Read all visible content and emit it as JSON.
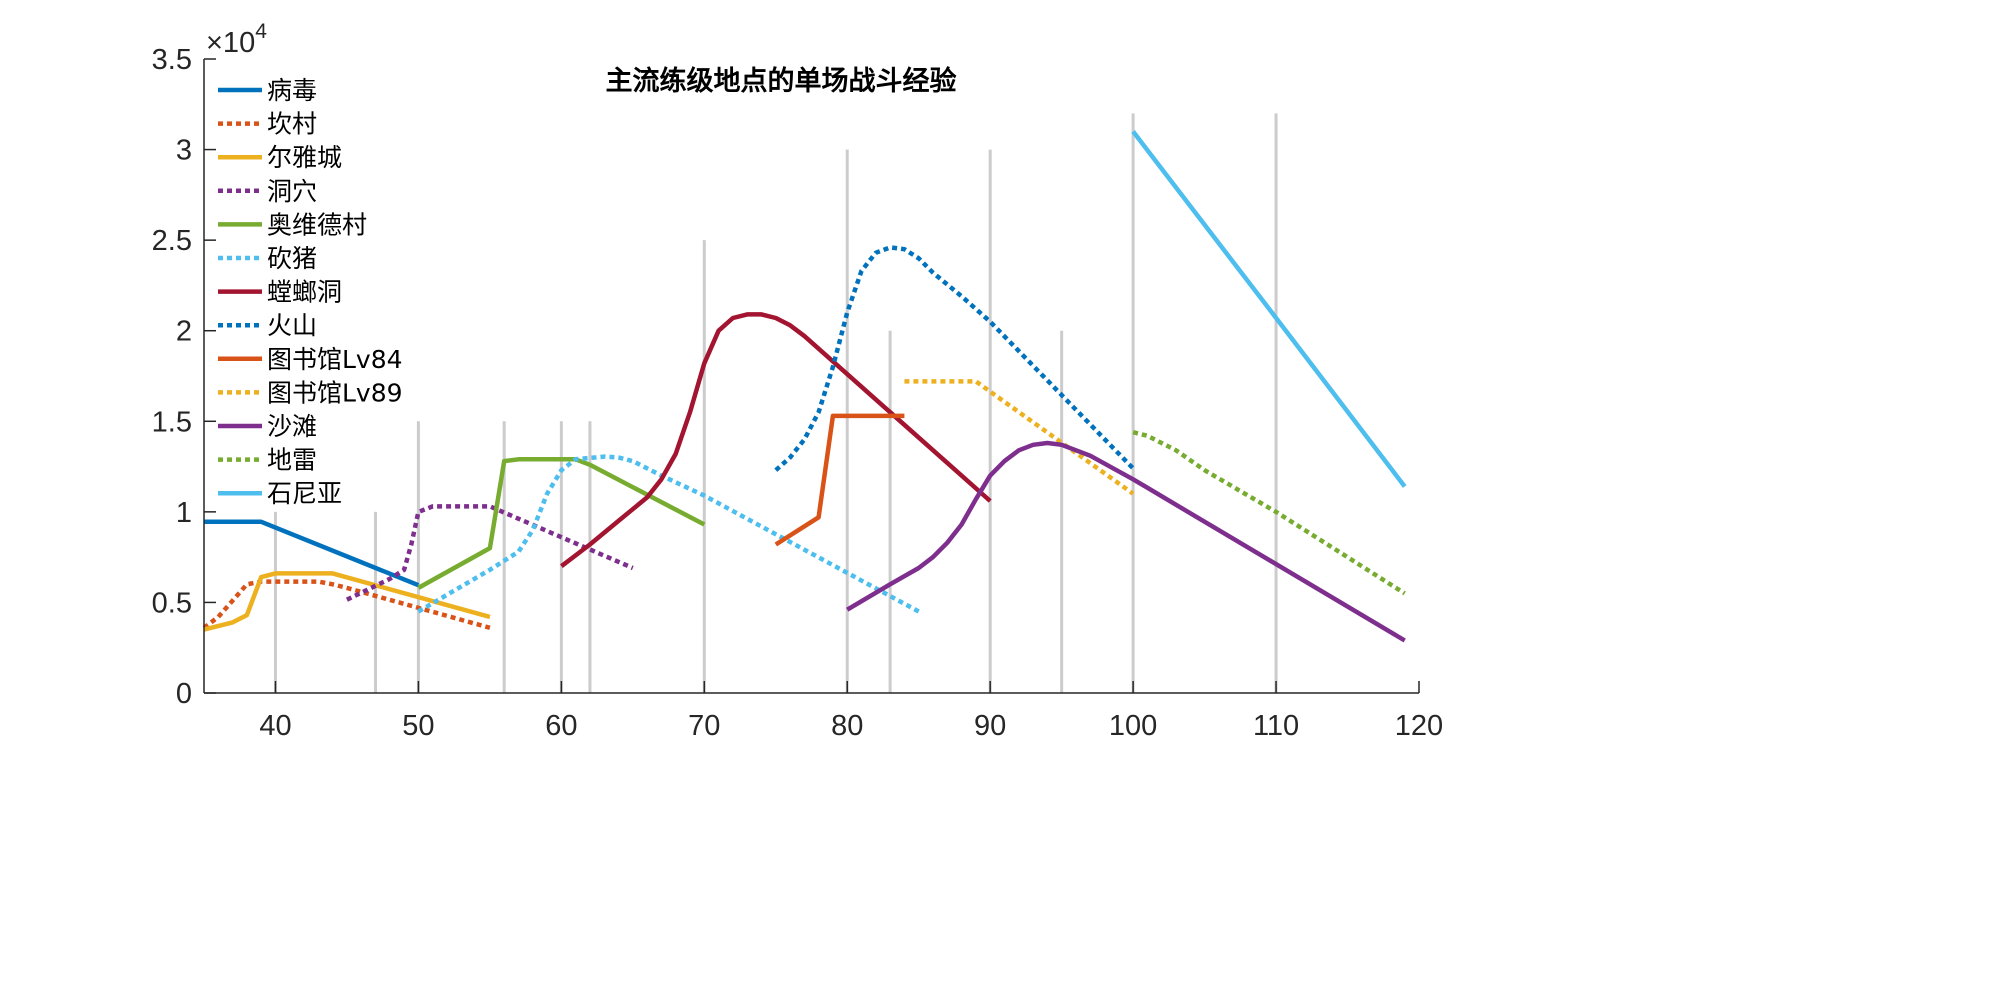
{
  "chart_data": {
    "type": "line",
    "title": "主流练级地点的单场战斗经验",
    "xlabel": "",
    "ylabel": "",
    "xlim": [
      35,
      120
    ],
    "ylim": [
      0,
      35000
    ],
    "y_exponent_label": "×10",
    "y_exponent_power": "4",
    "x_ticks": [
      "40",
      "50",
      "60",
      "70",
      "80",
      "90",
      "100",
      "110",
      "120"
    ],
    "x_tick_values": [
      40,
      50,
      60,
      70,
      80,
      90,
      100,
      110,
      120
    ],
    "y_ticks": [
      "0",
      "0.5",
      "1",
      "1.5",
      "2",
      "2.5",
      "3",
      "3.5"
    ],
    "y_tick_values": [
      0,
      5000,
      10000,
      15000,
      20000,
      25000,
      30000,
      35000
    ],
    "grid": false,
    "legend_position": "top-left",
    "reference_lines": [
      {
        "x": 40,
        "top": 10000
      },
      {
        "x": 47,
        "top": 10000
      },
      {
        "x": 50,
        "top": 15000
      },
      {
        "x": 56,
        "top": 15000
      },
      {
        "x": 60,
        "top": 15000
      },
      {
        "x": 62,
        "top": 15000
      },
      {
        "x": 70,
        "top": 25000
      },
      {
        "x": 80,
        "top": 30000
      },
      {
        "x": 83,
        "top": 20000
      },
      {
        "x": 90,
        "top": 30000
      },
      {
        "x": 95,
        "top": 20000
      },
      {
        "x": 100,
        "top": 32000
      },
      {
        "x": 110,
        "top": 32000
      }
    ],
    "reference_line_color": "#CCCCCC",
    "series": [
      {
        "name": "病毒",
        "color": "#0072BD",
        "style": "solid",
        "points": [
          [
            35,
            9450
          ],
          [
            39,
            9450
          ],
          [
            50,
            5950
          ]
        ]
      },
      {
        "name": "坎村",
        "color": "#D95319",
        "style": "dotted",
        "points": [
          [
            35,
            3600
          ],
          [
            36,
            4200
          ],
          [
            37,
            5100
          ],
          [
            38,
            6000
          ],
          [
            39,
            6150
          ],
          [
            43,
            6150
          ],
          [
            44,
            6000
          ],
          [
            45,
            5800
          ],
          [
            55,
            3600
          ]
        ]
      },
      {
        "name": "尔雅城",
        "color": "#EDB120",
        "style": "solid",
        "points": [
          [
            35,
            3500
          ],
          [
            37,
            3900
          ],
          [
            38,
            4300
          ],
          [
            39,
            6400
          ],
          [
            40,
            6600
          ],
          [
            44,
            6600
          ],
          [
            55,
            4200
          ]
        ]
      },
      {
        "name": "洞穴",
        "color": "#7E2F8E",
        "style": "dotted",
        "points": [
          [
            45,
            5150
          ],
          [
            48,
            6300
          ],
          [
            49,
            6800
          ],
          [
            49.5,
            8200
          ],
          [
            50,
            10000
          ],
          [
            51,
            10300
          ],
          [
            55,
            10300
          ],
          [
            65,
            6900
          ]
        ]
      },
      {
        "name": "奥维德村",
        "color": "#77AC30",
        "style": "solid",
        "points": [
          [
            50,
            5800
          ],
          [
            55,
            8000
          ],
          [
            56,
            12800
          ],
          [
            57,
            12900
          ],
          [
            61,
            12900
          ],
          [
            62,
            12600
          ],
          [
            70,
            9300
          ]
        ]
      },
      {
        "name": "砍猪",
        "color": "#4DBEEE",
        "style": "dotted",
        "points": [
          [
            50,
            4500
          ],
          [
            55,
            6800
          ],
          [
            57,
            7800
          ],
          [
            58,
            9000
          ],
          [
            59,
            11000
          ],
          [
            60,
            12300
          ],
          [
            61,
            12900
          ],
          [
            63,
            13050
          ],
          [
            64,
            13000
          ],
          [
            65,
            12800
          ],
          [
            67,
            12000
          ],
          [
            70,
            10900
          ],
          [
            85,
            4500
          ]
        ]
      },
      {
        "name": "螳螂洞",
        "color": "#A2142F",
        "style": "solid",
        "points": [
          [
            60,
            7000
          ],
          [
            62,
            8200
          ],
          [
            64,
            9500
          ],
          [
            66,
            10800
          ],
          [
            67,
            11800
          ],
          [
            68,
            13200
          ],
          [
            69,
            15500
          ],
          [
            70,
            18200
          ],
          [
            71,
            20000
          ],
          [
            72,
            20700
          ],
          [
            73,
            20900
          ],
          [
            74,
            20900
          ],
          [
            75,
            20700
          ],
          [
            76,
            20300
          ],
          [
            77,
            19700
          ],
          [
            90,
            10600
          ]
        ]
      },
      {
        "name": "火山",
        "color": "#0072BD",
        "style": "dotted",
        "points": [
          [
            75,
            12300
          ],
          [
            76,
            13000
          ],
          [
            77,
            14000
          ],
          [
            78,
            15500
          ],
          [
            79,
            18000
          ],
          [
            80,
            21000
          ],
          [
            81,
            23300
          ],
          [
            82,
            24300
          ],
          [
            83,
            24600
          ],
          [
            84,
            24500
          ],
          [
            85,
            24000
          ],
          [
            86,
            23200
          ],
          [
            88,
            21900
          ],
          [
            90,
            20500
          ],
          [
            100,
            12400
          ]
        ]
      },
      {
        "name": "图书馆Lv84",
        "color": "#D95319",
        "style": "solid",
        "points": [
          [
            75,
            8200
          ],
          [
            78,
            9700
          ],
          [
            79,
            15300
          ],
          [
            84,
            15300
          ]
        ]
      },
      {
        "name": "图书馆Lv89",
        "color": "#EDB120",
        "style": "dotted",
        "points": [
          [
            84,
            17200
          ],
          [
            89,
            17200
          ],
          [
            100,
            11000
          ]
        ]
      },
      {
        "name": "沙滩",
        "color": "#7E2F8E",
        "style": "solid",
        "points": [
          [
            80,
            4600
          ],
          [
            83,
            6000
          ],
          [
            85,
            6900
          ],
          [
            86,
            7500
          ],
          [
            87,
            8300
          ],
          [
            88,
            9300
          ],
          [
            89,
            10700
          ],
          [
            90,
            12000
          ],
          [
            91,
            12800
          ],
          [
            92,
            13400
          ],
          [
            93,
            13700
          ],
          [
            94,
            13800
          ],
          [
            95,
            13700
          ],
          [
            97,
            13100
          ],
          [
            100,
            11800
          ],
          [
            119,
            2900
          ]
        ]
      },
      {
        "name": "地雷",
        "color": "#77AC30",
        "style": "dotted",
        "points": [
          [
            100,
            14400
          ],
          [
            101,
            14200
          ],
          [
            103,
            13400
          ],
          [
            105,
            12300
          ],
          [
            110,
            10000
          ],
          [
            119,
            5500
          ]
        ]
      },
      {
        "name": "石尼亚",
        "color": "#4DBEEE",
        "style": "solid",
        "points": [
          [
            100,
            31000
          ],
          [
            110,
            20700
          ],
          [
            119,
            11400
          ]
        ]
      }
    ]
  }
}
